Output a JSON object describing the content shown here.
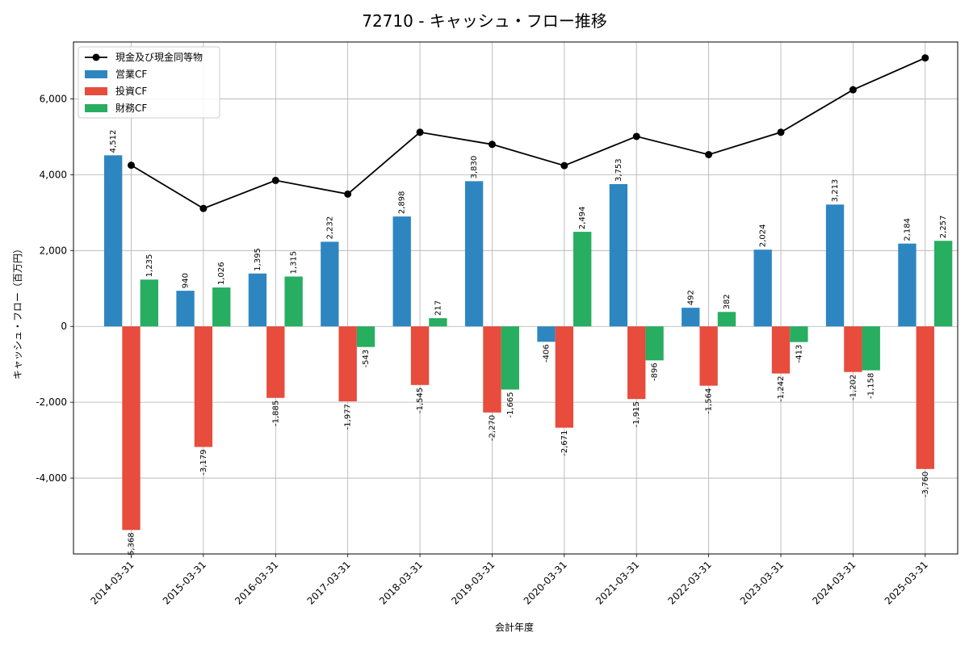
{
  "chart_data": {
    "type": "bar",
    "title": "72710 - キャッシュ・フロー推移",
    "xlabel": "会計年度",
    "ylabel": "キャッシュ・フロー（百万円）",
    "categories": [
      "2014-03-31",
      "2015-03-31",
      "2016-03-31",
      "2017-03-31",
      "2018-03-31",
      "2019-03-31",
      "2020-03-31",
      "2021-03-31",
      "2022-03-31",
      "2023-03-31",
      "2024-03-31",
      "2025-03-31"
    ],
    "series": [
      {
        "name": "営業CF",
        "type": "bar",
        "color": "#2e86c1",
        "values": [
          4512,
          940,
          1395,
          2232,
          2898,
          3830,
          -406,
          3753,
          492,
          2024,
          3213,
          2184
        ],
        "labels": [
          "4,512",
          "940",
          "1,395",
          "2,232",
          "2,898",
          "3,830",
          "-406",
          "3,753",
          "492",
          "2,024",
          "3,213",
          "2,184"
        ]
      },
      {
        "name": "投資CF",
        "type": "bar",
        "color": "#e74c3c",
        "values": [
          -5368,
          -3179,
          -1885,
          -1977,
          -1545,
          -2270,
          -2671,
          -1915,
          -1564,
          -1242,
          -1202,
          -3760
        ],
        "labels": [
          "-5,368",
          "-3,179",
          "-1,885",
          "-1,977",
          "-1,545",
          "-2,270",
          "-2,671",
          "-1,915",
          "-1,564",
          "-1,242",
          "-1,202",
          "-3,760"
        ]
      },
      {
        "name": "財務CF",
        "type": "bar",
        "color": "#27ae60",
        "values": [
          1235,
          1026,
          1315,
          -543,
          217,
          -1665,
          2494,
          -896,
          382,
          -413,
          -1158,
          2257
        ],
        "labels": [
          "1,235",
          "1,026",
          "1,315",
          "-543",
          "217",
          "-1,665",
          "2,494",
          "-896",
          "382",
          "-413",
          "-1,158",
          "2,257"
        ]
      },
      {
        "name": "現金及び現金同等物",
        "type": "line",
        "color": "#000000",
        "values": [
          4250,
          3110,
          3850,
          3490,
          5120,
          4800,
          4240,
          5010,
          4530,
          5120,
          6240,
          7080
        ]
      }
    ],
    "ylim": [
      -6000,
      7500
    ],
    "yticks": [
      -4000,
      -2000,
      0,
      2000,
      4000,
      6000
    ],
    "ytick_labels": [
      "-4,000",
      "-2,000",
      "0",
      "2,000",
      "4,000",
      "6,000"
    ],
    "grid": true,
    "legend": "top-left"
  }
}
